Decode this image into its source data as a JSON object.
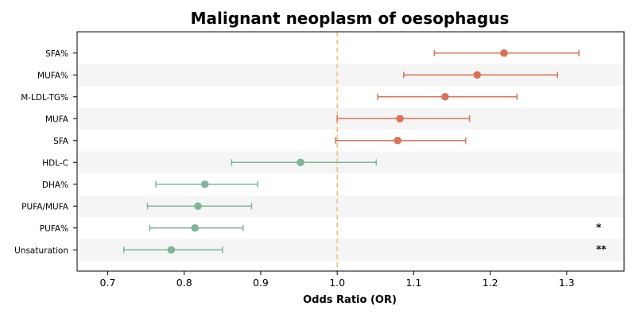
{
  "chart_data": {
    "type": "forest",
    "title": "Malignant neoplasm of oesophagus",
    "xlabel": "Odds Ratio (OR)",
    "xlim": [
      0.66,
      1.375
    ],
    "xticks": [
      "0.7",
      "0.8",
      "0.9",
      "1.0",
      "1.1",
      "1.2",
      "1.3"
    ],
    "reference_line": 1.0,
    "colors": {
      "positive": "#d9735a",
      "negative": "#7fb59a",
      "reference": "#f2c27a",
      "band": "#f5f5f5"
    },
    "rows": [
      {
        "label": "SFA%",
        "or": 1.218,
        "lo": 1.127,
        "hi": 1.316,
        "annotation": ""
      },
      {
        "label": "MUFA%",
        "or": 1.183,
        "lo": 1.087,
        "hi": 1.288,
        "annotation": ""
      },
      {
        "label": "M-LDL-TG%",
        "or": 1.141,
        "lo": 1.053,
        "hi": 1.235,
        "annotation": ""
      },
      {
        "label": "MUFA",
        "or": 1.082,
        "lo": 1.0,
        "hi": 1.173,
        "annotation": ""
      },
      {
        "label": "SFA",
        "or": 1.079,
        "lo": 0.998,
        "hi": 1.168,
        "annotation": ""
      },
      {
        "label": "HDL-C",
        "or": 0.952,
        "lo": 0.862,
        "hi": 1.051,
        "annotation": ""
      },
      {
        "label": "DHA%",
        "or": 0.827,
        "lo": 0.763,
        "hi": 0.896,
        "annotation": ""
      },
      {
        "label": "PUFA/MUFA",
        "or": 0.818,
        "lo": 0.752,
        "hi": 0.888,
        "annotation": ""
      },
      {
        "label": "PUFA%",
        "or": 0.814,
        "lo": 0.755,
        "hi": 0.877,
        "annotation": "*"
      },
      {
        "label": "Unsaturation",
        "or": 0.783,
        "lo": 0.721,
        "hi": 0.85,
        "annotation": "**"
      }
    ]
  }
}
